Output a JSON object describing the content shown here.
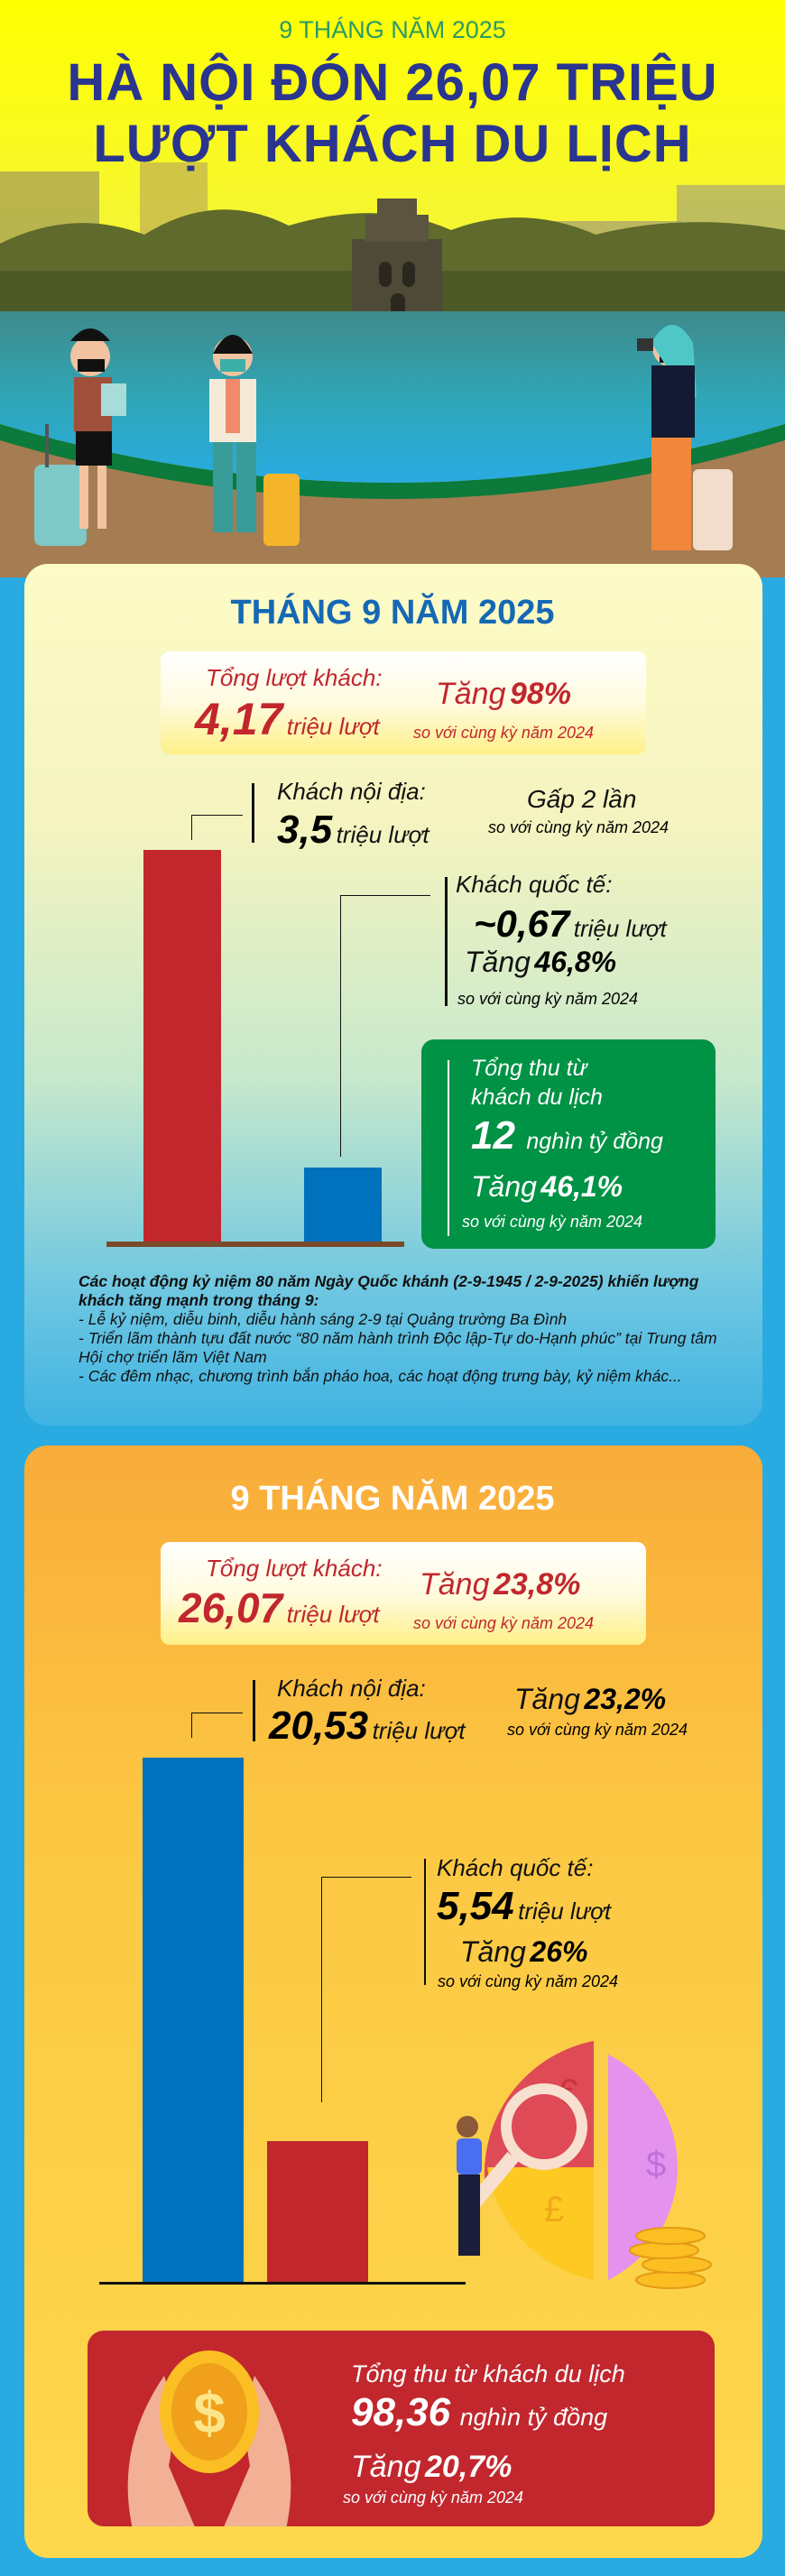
{
  "header": {
    "subtitle": "9 THÁNG NĂM 2025",
    "title_line1": "HÀ NỘI ĐÓN 26,07 TRIỆU",
    "title_line2": "LƯỢT KHÁCH DU LỊCH"
  },
  "colors": {
    "title": "#2a3590",
    "red": "#c1272d",
    "blue": "#0071bc",
    "green": "#009245",
    "bg": "#29abe2"
  },
  "september": {
    "title": "THÁNG 9 NĂM 2025",
    "total_label": "Tổng lượt khách:",
    "total_value": "4,17",
    "total_unit": "triệu lượt",
    "total_growth_prefix": "Tăng",
    "total_growth": "98%",
    "compare": "so với cùng kỳ năm 2024",
    "domestic_label": "Khách nội địa:",
    "domestic_value": "3,5",
    "domestic_unit": "triệu lượt",
    "domestic_growth": "Gấp 2 lần",
    "domestic_compare": "so với cùng kỳ năm 2024",
    "intl_label": "Khách quốc tế:",
    "intl_value": "~0,67",
    "intl_unit": "triệu lượt",
    "intl_growth_prefix": "Tăng",
    "intl_growth": "46,8%",
    "intl_compare": "so với cùng kỳ năm 2024",
    "revenue_label1": "Tổng thu từ",
    "revenue_label2": "khách du lịch",
    "revenue_value": "12",
    "revenue_unit": "nghìn tỷ đồng",
    "revenue_growth_prefix": "Tăng",
    "revenue_growth": "46,1%",
    "revenue_compare": "so với cùng kỳ năm 2024",
    "bars": [
      {
        "name": "Khách nội địa",
        "value": 3.5,
        "color": "#c1272d"
      },
      {
        "name": "Khách quốc tế",
        "value": 0.67,
        "color": "#0071bc"
      }
    ],
    "note_title": "Các hoạt động kỷ niệm 80 năm Ngày Quốc khánh (2-9-1945 / 2-9-2025) khiến lượng khách tăng mạnh trong tháng 9:",
    "note_items": [
      "- Lễ kỷ niệm, diễu binh, diễu hành sáng 2-9 tại Quảng trường Ba Đình",
      "- Triển lãm thành tựu đất nước “80 năm hành trình Độc lập-Tự do-Hạnh phúc” tại Trung tâm Hội chợ triển lãm Việt Nam",
      "- Các đêm nhạc, chương trình bắn pháo hoa, các hoạt động trưng bày, kỷ niệm khác..."
    ]
  },
  "nine_months": {
    "title": "9 THÁNG NĂM 2025",
    "total_label": "Tổng lượt khách:",
    "total_value": "26,07",
    "total_unit": "triệu lượt",
    "total_growth_prefix": "Tăng",
    "total_growth": "23,8%",
    "compare": "so với cùng kỳ năm 2024",
    "domestic_label": "Khách nội địa:",
    "domestic_value": "20,53",
    "domestic_unit": "triệu lượt",
    "domestic_growth_prefix": "Tăng",
    "domestic_growth": "23,2%",
    "domestic_compare": "so với cùng kỳ năm 2024",
    "intl_label": "Khách quốc tế:",
    "intl_value": "5,54",
    "intl_unit": "triệu lượt",
    "intl_growth_prefix": "Tăng",
    "intl_growth": "26%",
    "intl_compare": "so với cùng kỳ năm 2024",
    "revenue_label": "Tổng thu từ khách du lịch",
    "revenue_value": "98,36",
    "revenue_unit": "nghìn tỷ đồng",
    "revenue_growth_prefix": "Tăng",
    "revenue_growth": "20,7%",
    "revenue_compare": "so với cùng kỳ năm 2024",
    "bars": [
      {
        "name": "Khách nội địa",
        "value": 20.53,
        "color": "#0071bc"
      },
      {
        "name": "Khách quốc tế",
        "value": 5.54,
        "color": "#c1272d"
      }
    ]
  }
}
